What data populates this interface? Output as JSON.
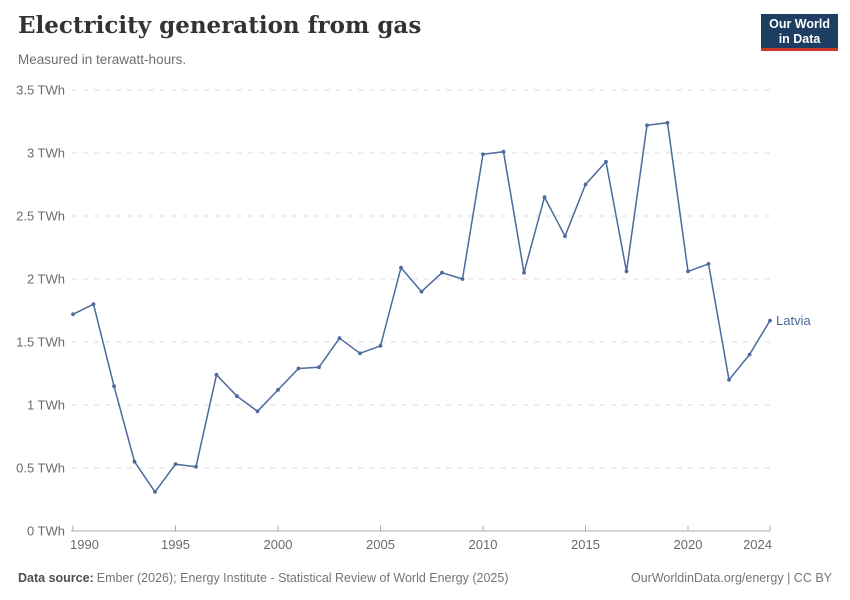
{
  "header": {
    "title": "Electricity generation from gas",
    "subtitle": "Measured in terawatt-hours.",
    "logo_line1": "Our World",
    "logo_line2": "in Data",
    "logo_bg": "#1d3d63",
    "logo_underline": "#d0342b"
  },
  "chart_data": {
    "type": "line",
    "title": "Electricity generation from gas",
    "subtitle": "Measured in terawatt-hours.",
    "unit": "TWh",
    "xlim": [
      1990,
      2024
    ],
    "ylim": [
      0,
      3.5
    ],
    "grid": "horizontal-dashed",
    "legend_position": "end-of-line-label",
    "x_ticks": [
      1990,
      1995,
      2000,
      2005,
      2010,
      2015,
      2020,
      2024
    ],
    "y_ticks": [
      {
        "value": 0,
        "label": "0 TWh"
      },
      {
        "value": 0.5,
        "label": "0.5 TWh"
      },
      {
        "value": 1,
        "label": "1 TWh"
      },
      {
        "value": 1.5,
        "label": "1.5 TWh"
      },
      {
        "value": 2,
        "label": "2 TWh"
      },
      {
        "value": 2.5,
        "label": "2.5 TWh"
      },
      {
        "value": 3,
        "label": "3 TWh"
      },
      {
        "value": 3.5,
        "label": "3.5 TWh"
      }
    ],
    "series": [
      {
        "name": "Latvia",
        "color": "#4C6A9C",
        "x": [
          1990,
          1991,
          1992,
          1993,
          1994,
          1995,
          1996,
          1997,
          1998,
          1999,
          2000,
          2001,
          2002,
          2003,
          2004,
          2005,
          2006,
          2007,
          2008,
          2009,
          2010,
          2011,
          2012,
          2013,
          2014,
          2015,
          2016,
          2017,
          2018,
          2019,
          2020,
          2021,
          2022,
          2023,
          2024
        ],
        "values": [
          1.72,
          1.8,
          1.15,
          0.55,
          0.31,
          0.53,
          0.51,
          1.24,
          1.07,
          0.95,
          1.12,
          1.29,
          1.3,
          1.53,
          1.41,
          1.47,
          2.09,
          1.9,
          2.05,
          2.0,
          2.99,
          3.01,
          2.05,
          2.65,
          2.34,
          2.75,
          2.93,
          2.06,
          3.22,
          3.24,
          2.06,
          2.12,
          1.2,
          1.4,
          1.67
        ]
      }
    ]
  },
  "footer": {
    "source_label": "Data source:",
    "source_text": "Ember (2026); Energy Institute - Statistical Review of World Energy (2025)",
    "link_text": "OurWorldinData.org/energy | CC BY"
  }
}
